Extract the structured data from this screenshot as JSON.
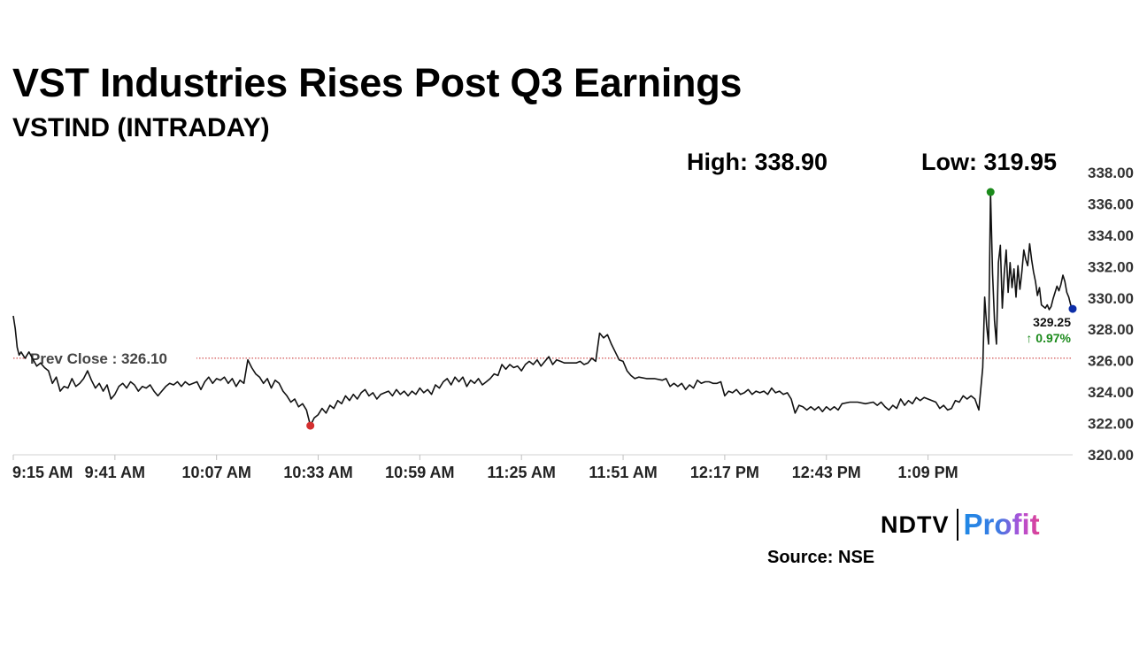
{
  "header": {
    "title": "VST Industries Rises Post Q3 Earnings",
    "subtitle": "VSTIND (INTRADAY)"
  },
  "stats": {
    "high_label": "High: 338.90",
    "low_label": "Low: 319.95"
  },
  "chart_data": {
    "type": "line",
    "title": "VST Industries Rises Post Q3 Earnings",
    "subtitle": "VSTIND (INTRADAY)",
    "xlabel": "",
    "ylabel": "",
    "x_ticks": [
      "9:15 AM",
      "9:41 AM",
      "10:07 AM",
      "10:33 AM",
      "10:59 AM",
      "11:25 AM",
      "11:51 AM",
      "12:17 PM",
      "12:43 PM",
      "1:09 PM"
    ],
    "y_ticks": [
      "338.00",
      "336.00",
      "334.00",
      "332.00",
      "330.00",
      "328.00",
      "326.00",
      "324.00",
      "322.00",
      "320.00"
    ],
    "x_range_minutes": [
      0,
      271
    ],
    "ylim": [
      320,
      338
    ],
    "grid": false,
    "y_axis_position": "right",
    "reference_line": {
      "label": "Prev Close : 326.10",
      "value": 326.1,
      "color": "#c62828",
      "style": "dotted"
    },
    "last_price": {
      "label": "329.25",
      "value": 329.25,
      "minute": 271
    },
    "change": {
      "label": "↑ 0.97%",
      "color": "#1b8a1b"
    },
    "high_marker": {
      "minute": 250,
      "value": 336.7,
      "color": "#1b8a1b"
    },
    "low_marker": {
      "minute": 76,
      "value": 321.8,
      "color": "#d32f2f"
    },
    "last_marker_color": "#0d2ea8",
    "series": [
      {
        "name": "VSTIND",
        "points": [
          [
            0,
            328.8
          ],
          [
            0.5,
            328.0
          ],
          [
            1,
            326.8
          ],
          [
            1.5,
            326.3
          ],
          [
            2,
            326.5
          ],
          [
            3,
            326.1
          ],
          [
            4,
            326.5
          ],
          [
            6,
            325.6
          ],
          [
            7,
            325.8
          ],
          [
            8,
            325.5
          ],
          [
            9,
            325.3
          ],
          [
            10,
            324.5
          ],
          [
            11,
            324.9
          ],
          [
            12,
            324.0
          ],
          [
            13,
            324.3
          ],
          [
            14,
            324.2
          ],
          [
            15,
            324.8
          ],
          [
            16,
            324.3
          ],
          [
            17,
            324.5
          ],
          [
            18,
            324.8
          ],
          [
            19,
            325.3
          ],
          [
            20,
            324.7
          ],
          [
            21,
            324.2
          ],
          [
            22,
            324.5
          ],
          [
            23,
            324.0
          ],
          [
            24,
            324.4
          ],
          [
            25,
            323.5
          ],
          [
            26,
            323.8
          ],
          [
            27,
            324.3
          ],
          [
            28,
            324.5
          ],
          [
            29,
            324.2
          ],
          [
            30,
            324.6
          ],
          [
            31,
            324.4
          ],
          [
            32,
            324.0
          ],
          [
            33,
            324.3
          ],
          [
            34,
            324.2
          ],
          [
            35,
            324.4
          ],
          [
            36,
            324.0
          ],
          [
            37,
            323.7
          ],
          [
            38,
            324.0
          ],
          [
            39,
            324.3
          ],
          [
            40,
            324.5
          ],
          [
            41,
            324.4
          ],
          [
            42,
            324.6
          ],
          [
            43,
            324.3
          ],
          [
            44,
            324.6
          ],
          [
            45,
            324.4
          ],
          [
            46,
            324.5
          ],
          [
            47,
            324.6
          ],
          [
            48,
            324.1
          ],
          [
            49,
            324.6
          ],
          [
            50,
            324.9
          ],
          [
            51,
            324.5
          ],
          [
            52,
            324.8
          ],
          [
            53,
            324.7
          ],
          [
            54,
            324.9
          ],
          [
            55,
            324.5
          ],
          [
            56,
            324.8
          ],
          [
            57,
            324.3
          ],
          [
            58,
            324.7
          ],
          [
            59,
            324.5
          ],
          [
            60,
            326.0
          ],
          [
            61,
            325.5
          ],
          [
            62,
            325.1
          ],
          [
            63,
            324.9
          ],
          [
            64,
            324.5
          ],
          [
            65,
            324.8
          ],
          [
            66,
            324.2
          ],
          [
            67,
            324.7
          ],
          [
            68,
            324.5
          ],
          [
            69,
            324.0
          ],
          [
            70,
            323.7
          ],
          [
            71,
            323.3
          ],
          [
            72,
            323.5
          ],
          [
            73,
            323.0
          ],
          [
            74,
            323.2
          ],
          [
            75,
            322.8
          ],
          [
            76,
            321.8
          ],
          [
            77,
            322.3
          ],
          [
            78,
            322.5
          ],
          [
            79,
            322.9
          ],
          [
            80,
            322.6
          ],
          [
            81,
            323.1
          ],
          [
            82,
            322.9
          ],
          [
            83,
            323.4
          ],
          [
            84,
            323.2
          ],
          [
            85,
            323.7
          ],
          [
            86,
            323.4
          ],
          [
            87,
            323.8
          ],
          [
            88,
            323.5
          ],
          [
            89,
            323.9
          ],
          [
            90,
            324.1
          ],
          [
            91,
            323.7
          ],
          [
            92,
            323.9
          ],
          [
            93,
            323.5
          ],
          [
            94,
            323.8
          ],
          [
            95,
            323.9
          ],
          [
            96,
            324.0
          ],
          [
            97,
            323.7
          ],
          [
            98,
            324.1
          ],
          [
            99,
            323.8
          ],
          [
            100,
            324.0
          ],
          [
            101,
            323.7
          ],
          [
            102,
            324.0
          ],
          [
            103,
            323.8
          ],
          [
            104,
            324.2
          ],
          [
            105,
            323.9
          ],
          [
            106,
            324.1
          ],
          [
            107,
            323.8
          ],
          [
            108,
            324.4
          ],
          [
            109,
            324.2
          ],
          [
            110,
            324.6
          ],
          [
            111,
            324.8
          ],
          [
            112,
            324.4
          ],
          [
            113,
            324.9
          ],
          [
            114,
            324.6
          ],
          [
            115,
            324.9
          ],
          [
            116,
            324.3
          ],
          [
            117,
            324.7
          ],
          [
            118,
            324.5
          ],
          [
            119,
            324.8
          ],
          [
            120,
            324.4
          ],
          [
            121,
            324.6
          ],
          [
            122,
            324.8
          ],
          [
            123,
            325.1
          ],
          [
            124,
            325.0
          ],
          [
            125,
            325.7
          ],
          [
            126,
            325.4
          ],
          [
            127,
            325.7
          ],
          [
            128,
            325.5
          ],
          [
            129,
            325.6
          ],
          [
            130,
            325.3
          ],
          [
            131,
            325.7
          ],
          [
            132,
            325.9
          ],
          [
            133,
            325.7
          ],
          [
            134,
            326.0
          ],
          [
            135,
            325.6
          ],
          [
            136,
            325.9
          ],
          [
            137,
            326.2
          ],
          [
            138,
            325.7
          ],
          [
            139,
            326.0
          ],
          [
            140,
            325.9
          ],
          [
            141,
            325.8
          ],
          [
            142,
            325.8
          ],
          [
            143,
            325.8
          ],
          [
            144,
            325.8
          ],
          [
            145,
            325.9
          ],
          [
            146,
            325.7
          ],
          [
            147,
            325.8
          ],
          [
            148,
            326.1
          ],
          [
            149,
            325.9
          ],
          [
            150,
            327.7
          ],
          [
            151,
            327.4
          ],
          [
            152,
            327.6
          ],
          [
            153,
            327.0
          ],
          [
            154,
            326.5
          ],
          [
            155,
            326.0
          ],
          [
            156,
            325.9
          ],
          [
            157,
            325.3
          ],
          [
            158,
            325.0
          ],
          [
            159,
            324.8
          ],
          [
            160,
            324.9
          ],
          [
            162,
            324.8
          ],
          [
            164,
            324.8
          ],
          [
            166,
            324.7
          ],
          [
            167,
            324.8
          ],
          [
            168,
            324.3
          ],
          [
            169,
            324.5
          ],
          [
            170,
            324.3
          ],
          [
            171,
            324.5
          ],
          [
            172,
            324.1
          ],
          [
            173,
            324.4
          ],
          [
            174,
            324.2
          ],
          [
            175,
            324.7
          ],
          [
            176,
            324.5
          ],
          [
            177,
            324.6
          ],
          [
            178,
            324.6
          ],
          [
            179,
            324.5
          ],
          [
            180,
            324.5
          ],
          [
            181,
            324.6
          ],
          [
            182,
            323.7
          ],
          [
            183,
            324.0
          ],
          [
            184,
            323.9
          ],
          [
            185,
            324.1
          ],
          [
            186,
            323.8
          ],
          [
            187,
            323.9
          ],
          [
            188,
            324.1
          ],
          [
            189,
            323.8
          ],
          [
            190,
            324.0
          ],
          [
            191,
            323.9
          ],
          [
            192,
            324.0
          ],
          [
            193,
            323.8
          ],
          [
            194,
            324.2
          ],
          [
            195,
            323.9
          ],
          [
            196,
            324.0
          ],
          [
            197,
            323.8
          ],
          [
            198,
            323.9
          ],
          [
            199,
            323.5
          ],
          [
            200,
            322.6
          ],
          [
            201,
            323.1
          ],
          [
            202,
            323.0
          ],
          [
            203,
            322.8
          ],
          [
            204,
            323.0
          ],
          [
            205,
            322.8
          ],
          [
            206,
            323.0
          ],
          [
            207,
            322.7
          ],
          [
            208,
            323.0
          ],
          [
            209,
            322.8
          ],
          [
            210,
            323.0
          ],
          [
            211,
            322.8
          ],
          [
            212,
            323.2
          ],
          [
            214,
            323.3
          ],
          [
            216,
            323.3
          ],
          [
            218,
            323.2
          ],
          [
            220,
            323.3
          ],
          [
            221,
            323.1
          ],
          [
            222,
            323.3
          ],
          [
            223,
            323.0
          ],
          [
            224,
            322.8
          ],
          [
            225,
            323.1
          ],
          [
            226,
            322.9
          ],
          [
            227,
            323.5
          ],
          [
            228,
            323.1
          ],
          [
            229,
            323.4
          ],
          [
            230,
            323.2
          ],
          [
            231,
            323.6
          ],
          [
            232,
            323.4
          ],
          [
            233,
            323.6
          ],
          [
            234,
            323.5
          ],
          [
            235,
            323.4
          ],
          [
            236,
            323.3
          ],
          [
            237,
            322.9
          ],
          [
            238,
            323.1
          ],
          [
            239,
            322.8
          ],
          [
            240,
            322.9
          ],
          [
            241,
            323.4
          ],
          [
            242,
            323.3
          ],
          [
            243,
            323.7
          ],
          [
            244,
            323.5
          ],
          [
            245,
            323.7
          ],
          [
            246,
            323.5
          ],
          [
            247,
            322.8
          ],
          [
            248,
            325.5
          ],
          [
            248.5,
            330.0
          ],
          [
            249,
            328.2
          ],
          [
            249.5,
            327.0
          ],
          [
            250,
            336.7
          ],
          [
            250.5,
            331.5
          ],
          [
            251,
            328.5
          ],
          [
            251.5,
            327.0
          ],
          [
            252,
            332.2
          ],
          [
            252.5,
            333.3
          ],
          [
            253,
            329.3
          ],
          [
            253.5,
            331.5
          ],
          [
            254,
            333.0
          ],
          [
            254.5,
            330.3
          ],
          [
            255,
            332.2
          ],
          [
            255.5,
            330.6
          ],
          [
            256,
            331.8
          ],
          [
            256.5,
            330.0
          ],
          [
            257,
            332.0
          ],
          [
            257.5,
            330.5
          ],
          [
            258,
            331.6
          ],
          [
            258.5,
            333.0
          ],
          [
            259,
            332.4
          ],
          [
            259.5,
            332.0
          ],
          [
            260,
            333.4
          ],
          [
            260.5,
            332.4
          ],
          [
            261,
            331.6
          ],
          [
            261.5,
            331.0
          ],
          [
            262,
            330.1
          ],
          [
            262.5,
            330.6
          ],
          [
            263,
            329.5
          ],
          [
            264,
            329.3
          ],
          [
            264.5,
            329.5
          ],
          [
            265,
            329.2
          ],
          [
            265.5,
            329.4
          ],
          [
            266,
            329.9
          ],
          [
            266.5,
            330.3
          ],
          [
            267,
            330.7
          ],
          [
            267.5,
            330.4
          ],
          [
            268,
            330.8
          ],
          [
            268.5,
            331.4
          ],
          [
            269,
            331.0
          ],
          [
            269.5,
            330.3
          ],
          [
            270,
            330.0
          ],
          [
            270.5,
            329.5
          ],
          [
            271,
            329.25
          ]
        ]
      }
    ]
  },
  "footer": {
    "logo_primary": "NDTV",
    "logo_secondary": "Profit",
    "source": "Source: NSE"
  }
}
